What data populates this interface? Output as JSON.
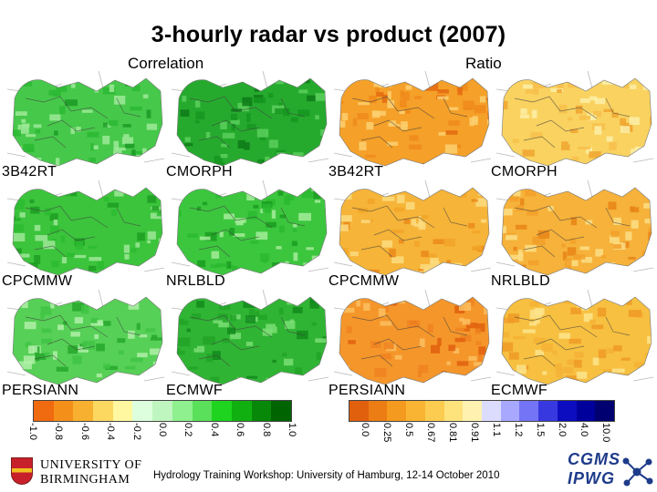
{
  "title": "3-hourly radar vs product (2007)",
  "headers": {
    "correlation": "Correlation",
    "ratio": "Ratio"
  },
  "panels": [
    {
      "label": "3B42RT",
      "kind": "correlation",
      "fill": "#46c84a",
      "light": "#9eea98",
      "dark": "#1c9a24",
      "patch": "#2cb832"
    },
    {
      "label": "CMORPH",
      "kind": "correlation",
      "fill": "#26aa2e",
      "light": "#5cd05c",
      "dark": "#0e7a18",
      "patch": "#169620"
    },
    {
      "label": "3B42RT",
      "kind": "ratio",
      "fill": "#f5a028",
      "light": "#fbd070",
      "dark": "#e36a10",
      "patch": "#ee8a1a"
    },
    {
      "label": "CMORPH",
      "kind": "ratio",
      "fill": "#f9d260",
      "light": "#fdf0a8",
      "dark": "#f0a630",
      "patch": "#f7c04a"
    },
    {
      "label": "CPCMMW",
      "kind": "correlation",
      "fill": "#3cc43c",
      "light": "#9ee896",
      "dark": "#1c9e22",
      "patch": "#2cbc30"
    },
    {
      "label": "NRLBLD",
      "kind": "correlation",
      "fill": "#3cc63e",
      "light": "#a4ec9a",
      "dark": "#1a9c20",
      "patch": "#2ab830"
    },
    {
      "label": "CPCMMW",
      "kind": "ratio",
      "fill": "#f6b438",
      "light": "#fcdc80",
      "dark": "#ea8a1c",
      "patch": "#f2a428"
    },
    {
      "label": "NRLBLD",
      "kind": "ratio",
      "fill": "#f6b23a",
      "light": "#fcde86",
      "dark": "#e88418",
      "patch": "#f2a02a"
    },
    {
      "label": "PERSIANN",
      "kind": "correlation",
      "fill": "#56d056",
      "light": "#b0f0a8",
      "dark": "#26a82c",
      "patch": "#40c444"
    },
    {
      "label": "ECMWF",
      "kind": "correlation",
      "fill": "#30b434",
      "light": "#7ade74",
      "dark": "#128a1c",
      "patch": "#22a428"
    },
    {
      "label": "PERSIANN",
      "kind": "ratio",
      "fill": "#f5962a",
      "light": "#fbc060",
      "dark": "#e0600e",
      "patch": "#ee8220"
    },
    {
      "label": "ECMWF",
      "kind": "ratio",
      "fill": "#f7c040",
      "light": "#fde48c",
      "dark": "#ef9a26",
      "patch": "#f5b234"
    }
  ],
  "colorbar_corr": {
    "colors": [
      "#f06a10",
      "#f4901a",
      "#f8b030",
      "#fcd860",
      "#fff8a0",
      "#ddffdd",
      "#bff5bf",
      "#8ef08e",
      "#5ae05a",
      "#1ed41e",
      "#10b010",
      "#088808",
      "#006400"
    ],
    "ticks": [
      "-1.0",
      "-0.8",
      "-0.6",
      "-0.4",
      "-0.2",
      "0.0",
      "0.2",
      "0.4",
      "0.6",
      "0.8",
      "1.0"
    ]
  },
  "colorbar_ratio": {
    "colors": [
      "#e0600e",
      "#ec7c14",
      "#f49a1e",
      "#f8b432",
      "#fccc50",
      "#fee27c",
      "#fff2b0",
      "#dcdcff",
      "#a8a8ff",
      "#7474f6",
      "#3838e0",
      "#0c0cc0",
      "#00009c",
      "#000070"
    ],
    "ticks": [
      "0.0",
      "0.25",
      "0.5",
      "0.67",
      "0.81",
      "0.91",
      "1.1",
      "1.2",
      "1.5",
      "2.0",
      "4.0",
      "10.0"
    ]
  },
  "footer": "Hydrology Training Workshop: University of Hamburg, 12-14 October 2010",
  "logo_left": {
    "line1": "UNIVERSITY OF",
    "line2": "BIRMINGHAM"
  },
  "logo_right": {
    "line1": "CGMS",
    "line2": "IPWG"
  }
}
